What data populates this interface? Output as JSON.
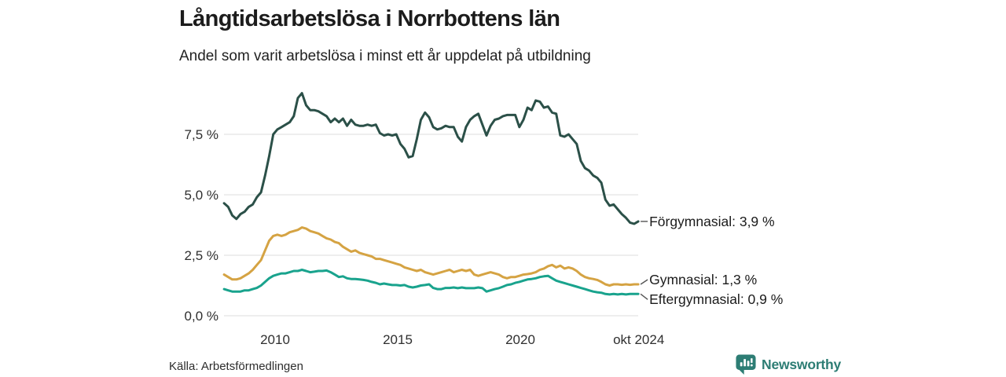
{
  "header": {
    "title": "Långtidsarbetslösa i Norrbottens län",
    "subtitle": "Andel som varit arbetslösa i minst ett år uppdelat på utbildning"
  },
  "footer": {
    "source": "Källa: Arbetsförmedlingen",
    "brand": "Newsworthy",
    "brand_color": "#2d7d74",
    "brand_icon": "newsworthy-chart-bubble-icon"
  },
  "colors": {
    "gridline": "#e3e3e3",
    "text_dark": "#1b1b1b",
    "tick_text": "#2f2f2f"
  },
  "chart_data": {
    "type": "line",
    "title": "Långtidsarbetslösa i Norrbottens län",
    "subtitle": "Andel som varit arbetslösa i minst ett år uppdelat på utbildning",
    "unit": "%",
    "grid": true,
    "legend_position": "end-of-line",
    "x_start": 2007.92,
    "x_step": 0.16723,
    "x_axis": {
      "range": [
        2007.92,
        2024.81
      ],
      "ticks": [
        {
          "label": "2010",
          "year": 2010
        },
        {
          "label": "2015",
          "year": 2015
        },
        {
          "label": "2020",
          "year": 2020
        },
        {
          "label": "okt 2024",
          "year": 2024.83
        }
      ]
    },
    "y_axis": {
      "range": [
        0,
        9.6
      ],
      "ticks": [
        {
          "label": "0,0 %",
          "value": 0
        },
        {
          "label": "2,5 %",
          "value": 2.5
        },
        {
          "label": "5,0 %",
          "value": 5
        },
        {
          "label": "7,5 %",
          "value": 7.5
        }
      ]
    },
    "series": [
      {
        "name": "Förgymnasial",
        "slug": "forgymnasial",
        "color": "#2b5048",
        "end_value": 3.9,
        "end_label": "Förgymnasial: 3,9 %",
        "label_offset": 0,
        "values": [
          4.65,
          4.5,
          4.15,
          4.0,
          4.2,
          4.3,
          4.5,
          4.6,
          4.9,
          5.1,
          5.8,
          6.6,
          7.5,
          7.7,
          7.8,
          7.9,
          8.0,
          8.25,
          9.0,
          9.2,
          8.7,
          8.5,
          8.5,
          8.45,
          8.35,
          8.25,
          8.0,
          8.15,
          8.0,
          8.15,
          7.85,
          8.1,
          7.9,
          7.85,
          7.85,
          7.9,
          7.85,
          7.9,
          7.55,
          7.45,
          7.5,
          7.45,
          7.5,
          7.1,
          6.9,
          6.55,
          6.6,
          7.3,
          8.1,
          8.4,
          8.2,
          7.8,
          7.7,
          7.75,
          7.85,
          7.8,
          7.8,
          7.4,
          7.2,
          7.8,
          8.1,
          8.25,
          8.35,
          7.9,
          7.45,
          7.85,
          8.1,
          8.15,
          8.25,
          8.3,
          8.3,
          8.3,
          7.8,
          8.1,
          8.6,
          8.5,
          8.9,
          8.85,
          8.6,
          8.65,
          8.4,
          8.35,
          7.45,
          7.4,
          7.5,
          7.3,
          7.1,
          6.4,
          6.1,
          6.0,
          5.8,
          5.7,
          5.5,
          4.8,
          4.55,
          4.6,
          4.4,
          4.2,
          4.05,
          3.85,
          3.8,
          3.9
        ]
      },
      {
        "name": "Gymnasial",
        "slug": "gymnasial",
        "color": "#d5a343",
        "end_value": 1.3,
        "end_label": "Gymnasial: 1,3 %",
        "label_offset": -6,
        "values": [
          1.7,
          1.6,
          1.5,
          1.5,
          1.55,
          1.65,
          1.75,
          1.9,
          2.1,
          2.3,
          2.7,
          3.1,
          3.3,
          3.35,
          3.3,
          3.35,
          3.45,
          3.5,
          3.55,
          3.65,
          3.6,
          3.5,
          3.45,
          3.4,
          3.3,
          3.2,
          3.15,
          3.05,
          3.0,
          2.85,
          2.75,
          2.65,
          2.7,
          2.6,
          2.55,
          2.5,
          2.45,
          2.35,
          2.35,
          2.3,
          2.25,
          2.2,
          2.15,
          2.1,
          2.0,
          1.95,
          1.9,
          1.85,
          1.9,
          1.8,
          1.75,
          1.7,
          1.75,
          1.8,
          1.85,
          1.9,
          1.8,
          1.85,
          1.9,
          1.85,
          1.9,
          1.7,
          1.65,
          1.7,
          1.75,
          1.8,
          1.75,
          1.7,
          1.6,
          1.55,
          1.6,
          1.6,
          1.65,
          1.7,
          1.72,
          1.75,
          1.8,
          1.9,
          1.95,
          2.05,
          2.1,
          2.0,
          2.07,
          1.95,
          2.0,
          1.95,
          1.85,
          1.7,
          1.6,
          1.55,
          1.52,
          1.48,
          1.4,
          1.3,
          1.25,
          1.3,
          1.3,
          1.28,
          1.3,
          1.28,
          1.3,
          1.3
        ]
      },
      {
        "name": "Eftergymnasial",
        "slug": "eftergymnasial",
        "color": "#19a38d",
        "end_value": 0.9,
        "end_label": "Eftergymnasial: 0,9 %",
        "label_offset": 7,
        "values": [
          1.1,
          1.05,
          1.0,
          1.0,
          1.0,
          1.05,
          1.05,
          1.1,
          1.15,
          1.25,
          1.4,
          1.55,
          1.65,
          1.7,
          1.75,
          1.75,
          1.8,
          1.85,
          1.85,
          1.9,
          1.85,
          1.8,
          1.82,
          1.85,
          1.85,
          1.87,
          1.8,
          1.7,
          1.6,
          1.63,
          1.55,
          1.52,
          1.52,
          1.5,
          1.48,
          1.45,
          1.4,
          1.36,
          1.3,
          1.33,
          1.3,
          1.27,
          1.27,
          1.25,
          1.27,
          1.2,
          1.17,
          1.2,
          1.25,
          1.27,
          1.3,
          1.15,
          1.1,
          1.1,
          1.15,
          1.15,
          1.17,
          1.14,
          1.17,
          1.14,
          1.14,
          1.14,
          1.17,
          1.14,
          1.0,
          1.05,
          1.1,
          1.14,
          1.2,
          1.27,
          1.3,
          1.36,
          1.4,
          1.45,
          1.5,
          1.52,
          1.55,
          1.6,
          1.63,
          1.65,
          1.55,
          1.45,
          1.4,
          1.35,
          1.3,
          1.25,
          1.2,
          1.15,
          1.1,
          1.05,
          1.0,
          0.97,
          0.95,
          0.9,
          0.88,
          0.9,
          0.88,
          0.9,
          0.88,
          0.9,
          0.9,
          0.9
        ]
      }
    ]
  }
}
